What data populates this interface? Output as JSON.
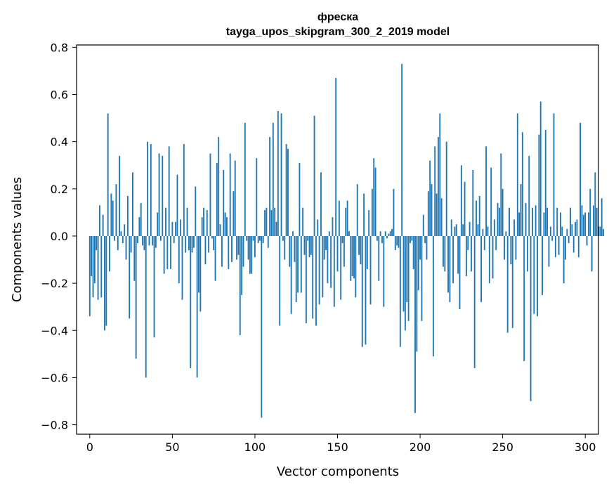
{
  "chart_data": {
    "type": "bar",
    "title": "фреска",
    "subtitle": "tayga_upos_skipgram_300_2_2019 model",
    "xlabel": "Vector components",
    "ylabel": "Components values",
    "xlim": [
      -8,
      308
    ],
    "ylim": [
      -0.84,
      0.81
    ],
    "xticks": [
      0,
      50,
      100,
      150,
      200,
      250,
      300
    ],
    "xtick_labels": [
      "0",
      "50",
      "100",
      "150",
      "200",
      "250",
      "300"
    ],
    "yticks": [
      -0.8,
      -0.6,
      -0.4,
      -0.2,
      0.0,
      0.2,
      0.4,
      0.6,
      0.8
    ],
    "ytick_labels": [
      "−0.8",
      "−0.6",
      "−0.4",
      "−0.2",
      "0.0",
      "0.2",
      "0.4",
      "0.6",
      "0.8"
    ],
    "bar_color": "#1f77b4",
    "grid": false,
    "values": [
      -0.34,
      -0.17,
      -0.26,
      -0.2,
      -0.06,
      -0.27,
      0.13,
      -0.26,
      0.09,
      -0.4,
      -0.38,
      0.52,
      -0.15,
      0.18,
      0.15,
      -0.02,
      0.22,
      -0.06,
      0.34,
      0.02,
      -0.03,
      0.05,
      -0.1,
      0.17,
      -0.35,
      -0.07,
      0.27,
      -0.19,
      -0.52,
      -0.03,
      0.08,
      0.14,
      -0.04,
      -0.06,
      -0.6,
      0.4,
      -0.04,
      0.39,
      -0.04,
      -0.43,
      -0.05,
      0.1,
      0.35,
      -0.02,
      0.34,
      -0.16,
      0.12,
      -0.14,
      0.38,
      -0.14,
      0.06,
      -0.03,
      0.06,
      0.26,
      -0.2,
      0.07,
      -0.27,
      0.39,
      -0.07,
      0.12,
      -0.06,
      -0.56,
      -0.07,
      -0.05,
      0.21,
      -0.6,
      -0.24,
      -0.32,
      0.08,
      0.12,
      -0.12,
      0.11,
      -0.07,
      0.35,
      -0.01,
      -0.06,
      -0.19,
      0.31,
      0.42,
      0.05,
      -0.13,
      0.28,
      0.1,
      0.08,
      -0.14,
      0.35,
      -0.11,
      0.19,
      0.32,
      -0.1,
      -0.08,
      -0.42,
      -0.25,
      -0.13,
      0.48,
      -0.02,
      -0.1,
      -0.16,
      -0.16,
      -0.02,
      -0.09,
      0.33,
      -0.03,
      -0.02,
      -0.77,
      -0.03,
      0.11,
      0.12,
      -0.05,
      0.42,
      0.11,
      0.48,
      0.12,
      0.06,
      0.53,
      -0.38,
      0.52,
      -0.02,
      -0.1,
      0.39,
      0.37,
      -0.13,
      -0.33,
      0.02,
      -0.11,
      -0.28,
      -0.24,
      0.31,
      -0.24,
      0.12,
      -0.08,
      -0.37,
      -0.02,
      -0.09,
      -0.08,
      -0.35,
      0.51,
      -0.38,
      0.07,
      -0.29,
      0.27,
      -0.26,
      -0.1,
      -0.06,
      -0.2,
      0.02,
      -0.22,
      0.08,
      -0.3,
      0.67,
      -0.15,
      0.15,
      -0.27,
      -0.03,
      -0.13,
      0.12,
      0.15,
      0.02,
      -0.19,
      -0.17,
      -0.18,
      -0.26,
      0.22,
      -0.08,
      -0.12,
      -0.47,
      0.18,
      -0.46,
      -0.14,
      0.11,
      -0.29,
      0.2,
      0.33,
      0.29,
      -0.02,
      -0.19,
      0.02,
      -0.03,
      -0.3,
      0.02,
      -0.01,
      0.01,
      0.02,
      0.03,
      0.2,
      -0.06,
      -0.04,
      -0.05,
      -0.47,
      0.73,
      -0.32,
      -0.4,
      -0.28,
      -0.36,
      -0.03,
      -0.02,
      -0.14,
      -0.75,
      -0.49,
      -0.23,
      -0.1,
      -0.36,
      0.09,
      -0.03,
      -0.1,
      0.19,
      0.32,
      0.22,
      -0.51,
      0.38,
      0.18,
      0.42,
      0.52,
      0.16,
      -0.13,
      -0.15,
      0.4,
      -0.24,
      -0.28,
      0.07,
      -0.2,
      0.04,
      0.05,
      -0.16,
      -0.31,
      0.3,
      0.05,
      0.23,
      -0.17,
      -0.06,
      0.06,
      -0.15,
      0.28,
      -0.56,
      0.15,
      0.05,
      0.17,
      -0.28,
      0.03,
      -0.06,
      0.38,
      0.04,
      -0.2,
      0.29,
      -0.18,
      0.07,
      -0.06,
      0.14,
      0.12,
      0.35,
      0.2,
      -0.1,
      0.02,
      -0.41,
      0.12,
      -0.12,
      -0.39,
      0.07,
      -0.1,
      0.52,
      0.1,
      0.22,
      0.44,
      -0.53,
      0.14,
      -0.15,
      0.34,
      -0.7,
      0.12,
      -0.33,
      0.13,
      -0.34,
      0.43,
      0.57,
      -0.25,
      0.1,
      0.45,
      0.12,
      -0.13,
      0.04,
      -0.02,
      0.52,
      -0.09,
      0.12,
      -0.08,
      0.1,
      0.04,
      -0.2,
      -0.1,
      0.03,
      -0.03,
      0.12,
      0.05,
      -0.07,
      0.06,
      0.07,
      -0.09,
      0.48,
      0.13,
      0.09,
      0.1,
      -0.04,
      0.1,
      0.2,
      -0.15,
      0.13,
      0.27,
      0.12,
      0.04,
      0.04,
      0.16,
      0.03
    ]
  }
}
